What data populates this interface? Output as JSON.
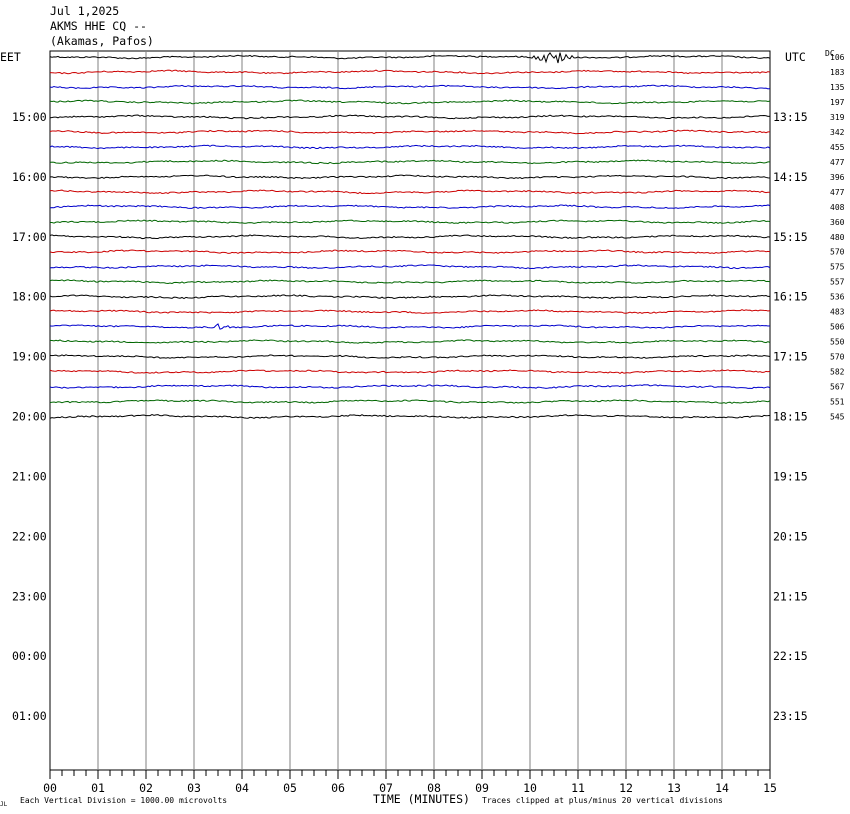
{
  "header": {
    "date": "Jul 1,2025",
    "station": "AKMS HHE CQ --",
    "location": "(Akamas, Pafos)"
  },
  "left_zone_label": "EET",
  "right_zone_label": "UTC",
  "dc_label": "DC",
  "footer": {
    "scale_note": "Each Vertical Division = 1000.00 microvolts",
    "xlabel": "TIME (MINUTES)",
    "clip_note": "Traces clipped at plus/minus 20 vertical divisions",
    "corner_mark": "JL"
  },
  "colors": {
    "cycle": [
      "#000000",
      "#cc0000",
      "#0000cc",
      "#006600"
    ],
    "grid": "#808080"
  },
  "chart_data": {
    "type": "line",
    "title": "AKMS HHE CQ -- (Akamas, Pafos) Jul 1,2025",
    "xlabel": "TIME (MINUTES)",
    "xlim": [
      0,
      15
    ],
    "x_ticks": [
      "00",
      "01",
      "02",
      "03",
      "04",
      "05",
      "06",
      "07",
      "08",
      "09",
      "10",
      "11",
      "12",
      "13",
      "14",
      "15"
    ],
    "rows_total": 48,
    "row_interval_minutes": 15,
    "left_hour_labels": [
      "15:00",
      "16:00",
      "17:00",
      "18:00",
      "19:00",
      "20:00",
      "21:00",
      "22:00",
      "23:00",
      "00:00",
      "01:00"
    ],
    "right_hour_labels": [
      "13:15",
      "14:15",
      "15:15",
      "16:15",
      "17:15",
      "18:15",
      "19:15",
      "20:15",
      "21:15",
      "22:15",
      "23:15"
    ],
    "dc_offsets": [
      106,
      183,
      135,
      197,
      319,
      342,
      455,
      477,
      396,
      477,
      408,
      360,
      480,
      570,
      575,
      557,
      536,
      483,
      506,
      550,
      570,
      582,
      567,
      551,
      545
    ],
    "events": [
      {
        "trace_index": 0,
        "minute_start": 10.0,
        "minute_end": 11.0,
        "description": "burst"
      },
      {
        "trace_index": 18,
        "minute_start": 3.3,
        "minute_end": 3.8,
        "description": "small burst"
      }
    ]
  }
}
